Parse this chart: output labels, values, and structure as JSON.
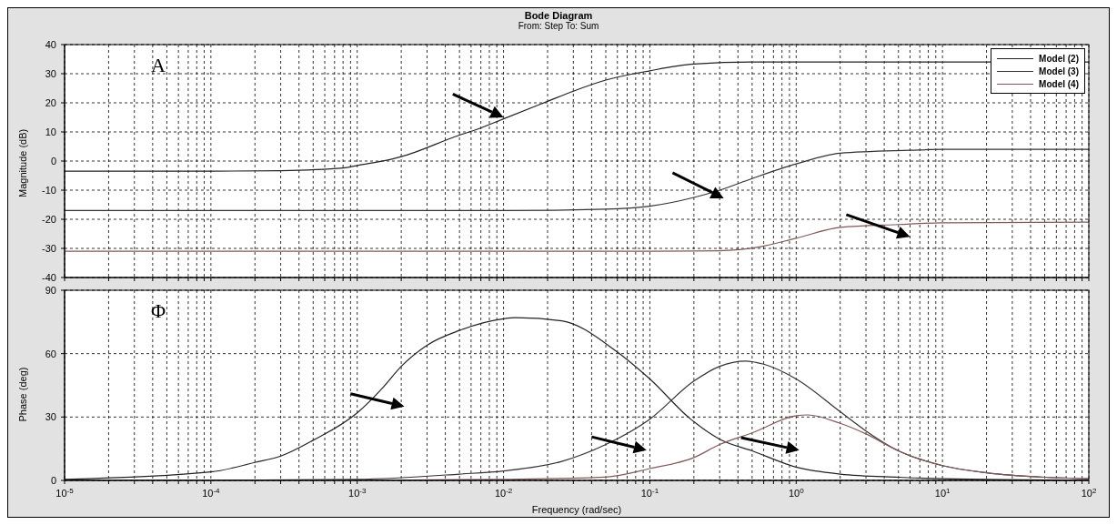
{
  "chart_data": [
    {
      "type": "line",
      "title": "Bode Diagram",
      "subtitle": "From: Step  To: Sum",
      "ylabel": "Magnitude (dB)",
      "annotations": [
        "A"
      ],
      "log": "x",
      "grid": true,
      "legend": "top right",
      "tick_labels": "y",
      "xlim": [
        1e-05,
        100
      ],
      "ylim": [
        -40,
        40
      ],
      "yticks": [
        -40,
        -30,
        -20,
        -10,
        0,
        10,
        20,
        30,
        40
      ],
      "xticks": [
        {
          "value": 1e-05,
          "label": null
        },
        {
          "value": 2e-05,
          "label": null
        },
        {
          "value": 3e-05,
          "label": null
        },
        {
          "value": 4e-05,
          "label": null
        },
        {
          "value": 5e-05,
          "label": null
        },
        {
          "value": 6e-05,
          "label": null
        },
        {
          "value": 7e-05,
          "label": null
        },
        {
          "value": 8e-05,
          "label": null
        },
        {
          "value": 9e-05,
          "label": null
        },
        {
          "value": 0.0001,
          "label": null
        },
        {
          "value": 0.0002,
          "label": null
        },
        {
          "value": 0.0003,
          "label": null
        },
        {
          "value": 0.0004,
          "label": null
        },
        {
          "value": 0.0005,
          "label": null
        },
        {
          "value": 0.0006,
          "label": null
        },
        {
          "value": 0.0007,
          "label": null
        },
        {
          "value": 0.0008,
          "label": null
        },
        {
          "value": 0.0009,
          "label": null
        },
        {
          "value": 0.001,
          "label": null
        },
        {
          "value": 0.002,
          "label": null
        },
        {
          "value": 0.003,
          "label": null
        },
        {
          "value": 0.004,
          "label": null
        },
        {
          "value": 0.005,
          "label": null
        },
        {
          "value": 0.006,
          "label": null
        },
        {
          "value": 0.007,
          "label": null
        },
        {
          "value": 0.008,
          "label": null
        },
        {
          "value": 0.009,
          "label": null
        },
        {
          "value": 0.01,
          "label": null
        },
        {
          "value": 0.02,
          "label": null
        },
        {
          "value": 0.03,
          "label": null
        },
        {
          "value": 0.04,
          "label": null
        },
        {
          "value": 0.05,
          "label": null
        },
        {
          "value": 0.06,
          "label": null
        },
        {
          "value": 0.07,
          "label": null
        },
        {
          "value": 0.08,
          "label": null
        },
        {
          "value": 0.09,
          "label": null
        },
        {
          "value": 0.1,
          "label": null
        },
        {
          "value": 0.2,
          "label": null
        },
        {
          "value": 0.3,
          "label": null
        },
        {
          "value": 0.4,
          "label": null
        },
        {
          "value": 0.5,
          "label": null
        },
        {
          "value": 0.6,
          "label": null
        },
        {
          "value": 0.7,
          "label": null
        },
        {
          "value": 0.8,
          "label": null
        },
        {
          "value": 0.9,
          "label": null
        },
        {
          "value": 1,
          "label": null
        },
        {
          "value": 2,
          "label": null
        },
        {
          "value": 3,
          "label": null
        },
        {
          "value": 4,
          "label": null
        },
        {
          "value": 5,
          "label": null
        },
        {
          "value": 6,
          "label": null
        },
        {
          "value": 7,
          "label": null
        },
        {
          "value": 8,
          "label": null
        },
        {
          "value": 9,
          "label": null
        },
        {
          "value": 10,
          "label": null
        },
        {
          "value": 20,
          "label": null
        },
        {
          "value": 30,
          "label": null
        },
        {
          "value": 40,
          "label": null
        },
        {
          "value": 50,
          "label": null
        },
        {
          "value": 60,
          "label": null
        },
        {
          "value": 70,
          "label": null
        },
        {
          "value": 80,
          "label": null
        },
        {
          "value": 90,
          "label": null
        },
        {
          "value": 100,
          "label": null
        }
      ],
      "series": [
        {
          "name": "Model (2)",
          "color": "#222222",
          "x": [
            1e-05,
            0.0001,
            0.0003,
            0.0008,
            0.001,
            0.0017,
            0.002,
            0.005,
            0.0067,
            0.01,
            0.02,
            0.03,
            0.05,
            0.1,
            0.2,
            0.5,
            1,
            10,
            100
          ],
          "values": [
            -3.5,
            -3.5,
            -3.3,
            -2.4,
            -1.5,
            0.6,
            1.5,
            8.9,
            11,
            14.5,
            20.5,
            24,
            27.8,
            31,
            33.3,
            34,
            34,
            34,
            34
          ]
        },
        {
          "name": "Model (3)",
          "color": "#333333",
          "x": [
            1e-05,
            0.001,
            0.01,
            0.05,
            0.1,
            0.2,
            0.3,
            0.5,
            1,
            2,
            6,
            10,
            100
          ],
          "values": [
            -17,
            -17,
            -17,
            -16.5,
            -15.5,
            -12.5,
            -10,
            -6,
            -1,
            2.7,
            3.7,
            4,
            4
          ]
        },
        {
          "name": "Model (4)",
          "color": "#805a5a",
          "x": [
            1e-05,
            0.001,
            0.01,
            0.1,
            0.3,
            0.56,
            1,
            2,
            5,
            10,
            100
          ],
          "values": [
            -31,
            -31,
            -31,
            -31,
            -30.8,
            -29.5,
            -26.5,
            -22.8,
            -21.8,
            -21.2,
            -21
          ]
        }
      ]
    },
    {
      "type": "line",
      "xlabel": "Frequency  (rad/sec)",
      "ylabel": "Phase (deg)",
      "annotations": [
        "Φ"
      ],
      "log": "x",
      "grid": true,
      "xlim": [
        1e-05,
        100
      ],
      "ylim": [
        0,
        90
      ],
      "yticks": [
        0,
        30,
        60,
        90
      ],
      "xticks": [
        {
          "value": 1e-05,
          "label": "10$^{-5}$"
        },
        {
          "value": 2e-05,
          "label": null
        },
        {
          "value": 3e-05,
          "label": null
        },
        {
          "value": 4e-05,
          "label": null
        },
        {
          "value": 5e-05,
          "label": null
        },
        {
          "value": 6e-05,
          "label": null
        },
        {
          "value": 7e-05,
          "label": null
        },
        {
          "value": 8e-05,
          "label": null
        },
        {
          "value": 9e-05,
          "label": null
        },
        {
          "value": 0.0001,
          "label": "10$^{-4}$"
        },
        {
          "value": 0.0002,
          "label": null
        },
        {
          "value": 0.0003,
          "label": null
        },
        {
          "value": 0.0004,
          "label": null
        },
        {
          "value": 0.0005,
          "label": null
        },
        {
          "value": 0.0006,
          "label": null
        },
        {
          "value": 0.0007,
          "label": null
        },
        {
          "value": 0.0008,
          "label": null
        },
        {
          "value": 0.0009,
          "label": null
        },
        {
          "value": 0.001,
          "label": "10$^{-3}$"
        },
        {
          "value": 0.002,
          "label": null
        },
        {
          "value": 0.003,
          "label": null
        },
        {
          "value": 0.004,
          "label": null
        },
        {
          "value": 0.005,
          "label": null
        },
        {
          "value": 0.006,
          "label": null
        },
        {
          "value": 0.007,
          "label": null
        },
        {
          "value": 0.008,
          "label": null
        },
        {
          "value": 0.009,
          "label": null
        },
        {
          "value": 0.01,
          "label": "10$^{-2}$"
        },
        {
          "value": 0.02,
          "label": null
        },
        {
          "value": 0.03,
          "label": null
        },
        {
          "value": 0.04,
          "label": null
        },
        {
          "value": 0.05,
          "label": null
        },
        {
          "value": 0.06,
          "label": null
        },
        {
          "value": 0.07,
          "label": null
        },
        {
          "value": 0.08,
          "label": null
        },
        {
          "value": 0.09,
          "label": null
        },
        {
          "value": 0.1,
          "label": "10$^{-1}$"
        },
        {
          "value": 0.2,
          "label": null
        },
        {
          "value": 0.3,
          "label": null
        },
        {
          "value": 0.4,
          "label": null
        },
        {
          "value": 0.5,
          "label": null
        },
        {
          "value": 0.6,
          "label": null
        },
        {
          "value": 0.7,
          "label": null
        },
        {
          "value": 0.8,
          "label": null
        },
        {
          "value": 0.9,
          "label": null
        },
        {
          "value": 1,
          "label": "10$^{0}$"
        },
        {
          "value": 2,
          "label": null
        },
        {
          "value": 3,
          "label": null
        },
        {
          "value": 4,
          "label": null
        },
        {
          "value": 5,
          "label": null
        },
        {
          "value": 6,
          "label": null
        },
        {
          "value": 7,
          "label": null
        },
        {
          "value": 8,
          "label": null
        },
        {
          "value": 9,
          "label": null
        },
        {
          "value": 10,
          "label": "10$^{1}$"
        },
        {
          "value": 20,
          "label": null
        },
        {
          "value": 30,
          "label": null
        },
        {
          "value": 40,
          "label": null
        },
        {
          "value": 50,
          "label": null
        },
        {
          "value": 60,
          "label": null
        },
        {
          "value": 70,
          "label": null
        },
        {
          "value": 80,
          "label": null
        },
        {
          "value": 90,
          "label": null
        },
        {
          "value": 100,
          "label": "10$^{2}$"
        }
      ],
      "series": [
        {
          "color": "#222222",
          "x": [
            1e-05,
            0.0001,
            0.0002,
            0.0003,
            0.0005,
            0.001,
            0.0015,
            0.002,
            0.003,
            0.005,
            0.01,
            0.012,
            0.025,
            0.058,
            0.1,
            0.19,
            0.3,
            0.5,
            1,
            2,
            5,
            10,
            100
          ],
          "values": [
            0.5,
            4,
            8.5,
            11.5,
            19,
            32,
            44,
            54,
            64,
            71,
            76.5,
            77,
            75.5,
            61.5,
            48,
            29,
            19.5,
            14,
            6.3,
            3,
            1.5,
            0.8,
            0.1
          ]
        },
        {
          "color": "#333333",
          "x": [
            1e-05,
            0.0001,
            0.001,
            0.005,
            0.01,
            0.025,
            0.05,
            0.1,
            0.2,
            0.3,
            0.45,
            0.6,
            1,
            2,
            3,
            5,
            10,
            20,
            50,
            100
          ],
          "values": [
            0,
            0,
            0.5,
            3,
            4.5,
            9,
            17,
            29,
            47,
            54,
            56.5,
            55,
            48,
            32.5,
            23.4,
            14,
            7,
            3.6,
            1.5,
            0.8
          ]
        },
        {
          "color": "#805a5a",
          "x": [
            1e-05,
            0.001,
            0.01,
            0.05,
            0.1,
            0.2,
            0.3,
            0.5,
            1,
            1.2,
            2,
            3,
            5,
            10,
            20,
            50,
            100
          ],
          "values": [
            0,
            0,
            0.5,
            1.6,
            5.6,
            10.8,
            17,
            22.5,
            30.6,
            31,
            27,
            22,
            14,
            7,
            3.6,
            1.5,
            0.8
          ]
        }
      ]
    }
  ]
}
